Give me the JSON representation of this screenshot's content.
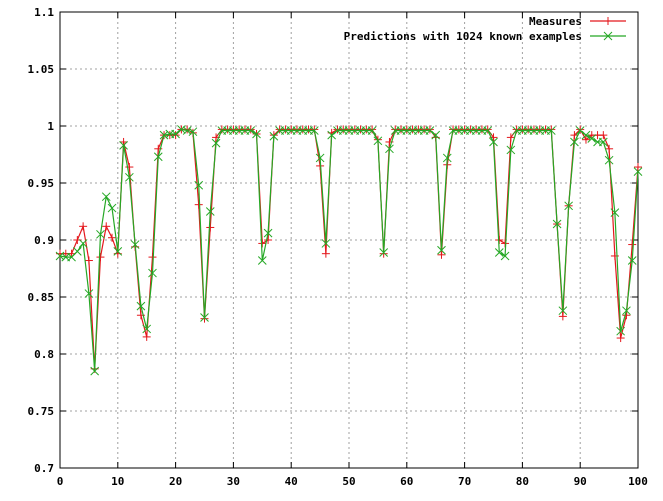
{
  "chart_data": {
    "type": "line",
    "xlim": [
      0,
      100
    ],
    "ylim": [
      0.7,
      1.1
    ],
    "x_ticks": [
      0,
      10,
      20,
      30,
      40,
      50,
      60,
      70,
      80,
      90,
      100
    ],
    "y_ticks": [
      0.7,
      0.75,
      0.8,
      0.85,
      0.9,
      0.95,
      1,
      1.05,
      1.1
    ],
    "x_tick_labels": [
      "0",
      "10",
      "20",
      "30",
      "40",
      "50",
      "60",
      "70",
      "80",
      "90",
      "100"
    ],
    "y_tick_labels": [
      "0.7",
      "0.75",
      "0.8",
      "0.85",
      "0.9",
      "0.95",
      "1",
      "1.05",
      "1.1"
    ],
    "grid": true,
    "legend_position": "top-right",
    "x": [
      0,
      1,
      2,
      3,
      4,
      5,
      6,
      7,
      8,
      9,
      10,
      11,
      12,
      13,
      14,
      15,
      16,
      17,
      18,
      19,
      20,
      21,
      22,
      23,
      24,
      25,
      26,
      27,
      28,
      29,
      30,
      31,
      32,
      33,
      34,
      35,
      36,
      37,
      38,
      39,
      40,
      41,
      42,
      43,
      44,
      45,
      46,
      47,
      48,
      49,
      50,
      51,
      52,
      53,
      54,
      55,
      56,
      57,
      58,
      59,
      60,
      61,
      62,
      63,
      64,
      65,
      66,
      67,
      68,
      69,
      70,
      71,
      72,
      73,
      74,
      75,
      76,
      77,
      78,
      79,
      80,
      81,
      82,
      83,
      84,
      85,
      86,
      87,
      88,
      89,
      90,
      91,
      92,
      93,
      94,
      95,
      96,
      97,
      98,
      99,
      100
    ],
    "series": [
      {
        "name": "Measures",
        "color": "#e4171c",
        "marker": "plus",
        "values": [
          0.888,
          0.888,
          0.888,
          0.9,
          0.912,
          0.882,
          0.787,
          0.885,
          0.912,
          0.902,
          0.888,
          0.986,
          0.964,
          0.894,
          0.834,
          0.815,
          0.885,
          0.98,
          0.992,
          0.992,
          0.992,
          0.997,
          0.997,
          0.994,
          0.931,
          0.831,
          0.911,
          0.99,
          0.997,
          0.997,
          0.997,
          0.997,
          0.997,
          0.997,
          0.993,
          0.897,
          0.9,
          0.992,
          0.997,
          0.997,
          0.997,
          0.997,
          0.997,
          0.997,
          0.997,
          0.965,
          0.888,
          0.994,
          0.997,
          0.997,
          0.997,
          0.997,
          0.997,
          0.997,
          0.997,
          0.988,
          0.888,
          0.986,
          0.997,
          0.997,
          0.997,
          0.997,
          0.997,
          0.997,
          0.997,
          0.99,
          0.887,
          0.966,
          0.997,
          0.997,
          0.997,
          0.997,
          0.997,
          0.997,
          0.997,
          0.99,
          0.9,
          0.897,
          0.99,
          0.997,
          0.997,
          0.997,
          0.997,
          0.997,
          0.997,
          0.997,
          0.914,
          0.833,
          0.93,
          0.992,
          0.997,
          0.988,
          0.992,
          0.992,
          0.992,
          0.98,
          0.886,
          0.814,
          0.834,
          0.896,
          0.964
        ]
      },
      {
        "name": "Predictions with 1024 known examples",
        "color": "#25a825",
        "marker": "cross",
        "values": [
          0.886,
          0.885,
          0.885,
          0.89,
          0.897,
          0.853,
          0.785,
          0.905,
          0.938,
          0.928,
          0.89,
          0.983,
          0.955,
          0.896,
          0.842,
          0.822,
          0.871,
          0.973,
          0.992,
          0.993,
          0.993,
          0.997,
          0.996,
          0.995,
          0.948,
          0.832,
          0.925,
          0.985,
          0.996,
          0.996,
          0.996,
          0.996,
          0.996,
          0.996,
          0.993,
          0.882,
          0.906,
          0.991,
          0.996,
          0.996,
          0.996,
          0.996,
          0.996,
          0.996,
          0.996,
          0.972,
          0.897,
          0.992,
          0.996,
          0.996,
          0.996,
          0.996,
          0.996,
          0.996,
          0.996,
          0.987,
          0.889,
          0.98,
          0.996,
          0.996,
          0.996,
          0.996,
          0.996,
          0.996,
          0.996,
          0.992,
          0.891,
          0.972,
          0.996,
          0.996,
          0.996,
          0.996,
          0.996,
          0.996,
          0.996,
          0.986,
          0.889,
          0.886,
          0.979,
          0.996,
          0.996,
          0.996,
          0.996,
          0.996,
          0.996,
          0.996,
          0.914,
          0.838,
          0.93,
          0.986,
          0.996,
          0.992,
          0.989,
          0.986,
          0.986,
          0.97,
          0.924,
          0.82,
          0.838,
          0.882,
          0.96
        ]
      }
    ]
  }
}
